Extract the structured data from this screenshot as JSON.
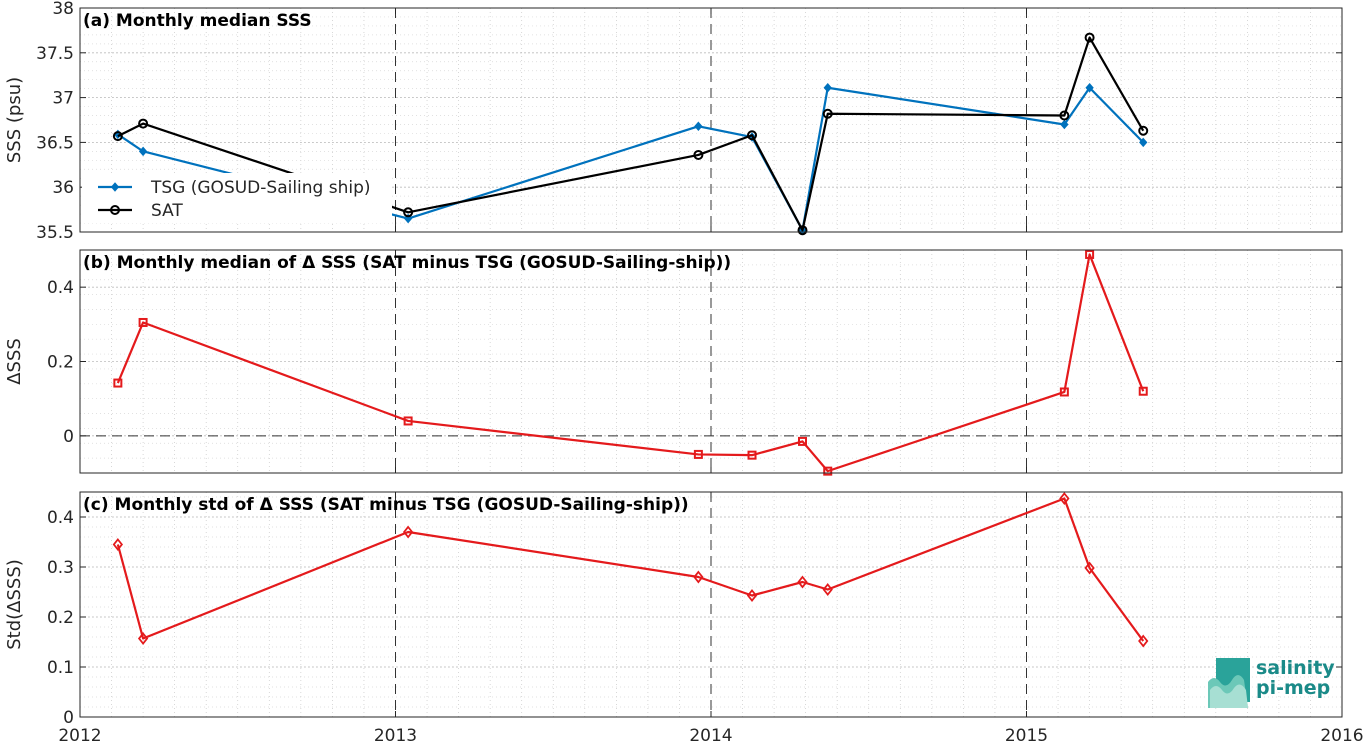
{
  "chart_data": [
    {
      "type": "line",
      "title": "(a) Monthly median SSS",
      "xlabel": "",
      "ylabel": "SSS (psu)",
      "xlim": [
        2012,
        2016
      ],
      "ylim": [
        35.5,
        38
      ],
      "yticks": [
        "35.5",
        "36",
        "36.5",
        "37",
        "37.5",
        "38"
      ],
      "grid": true,
      "legend_position": "middle-left",
      "series": [
        {
          "name": "TSG (GOSUD-Sailing ship)",
          "color": "#0072bd",
          "marker": "diamond-filled",
          "x": [
            2012.12,
            2012.2,
            2013.04,
            2013.96,
            2014.13,
            2014.29,
            2014.37,
            2015.12,
            2015.2,
            2015.37
          ],
          "y": [
            36.59,
            36.4,
            35.65,
            36.68,
            36.56,
            35.52,
            37.11,
            36.7,
            37.11,
            36.5
          ]
        },
        {
          "name": "SAT",
          "color": "#000000",
          "marker": "circle-open",
          "x": [
            2012.12,
            2012.2,
            2013.04,
            2013.96,
            2014.13,
            2014.29,
            2014.37,
            2015.12,
            2015.2,
            2015.37
          ],
          "y": [
            36.57,
            36.71,
            35.72,
            36.36,
            36.58,
            35.52,
            36.82,
            36.8,
            37.67,
            36.63
          ]
        }
      ]
    },
    {
      "type": "line",
      "title": "(b) Monthly median of Δ SSS (SAT minus TSG (GOSUD-Sailing-ship))",
      "xlabel": "",
      "ylabel": "ΔSSS",
      "xlim": [
        2012,
        2016
      ],
      "ylim": [
        -0.1,
        0.5
      ],
      "yticks": [
        "0",
        "0.2",
        "0.4"
      ],
      "zero_line": true,
      "grid": true,
      "series": [
        {
          "color": "#e41a1c",
          "marker": "square-open",
          "x": [
            2012.12,
            2012.2,
            2013.04,
            2013.96,
            2014.13,
            2014.29,
            2014.37,
            2015.12,
            2015.2,
            2015.37
          ],
          "y": [
            0.142,
            0.305,
            0.04,
            -0.05,
            -0.052,
            -0.015,
            -0.095,
            0.118,
            0.488,
            0.12
          ]
        }
      ]
    },
    {
      "type": "line",
      "title": "(c) Monthly std of Δ SSS (SAT minus TSG (GOSUD-Sailing-ship))",
      "xlabel": "",
      "ylabel": "Std(ΔSSS)",
      "xlim": [
        2012,
        2016
      ],
      "ylim": [
        0,
        0.45
      ],
      "xticks": [
        "2012",
        "2013",
        "2014",
        "2015",
        "2016"
      ],
      "yticks": [
        "0",
        "0.1",
        "0.2",
        "0.3",
        "0.4"
      ],
      "grid": true,
      "series": [
        {
          "color": "#e41a1c",
          "marker": "diamond-open",
          "x": [
            2012.12,
            2012.2,
            2013.04,
            2013.96,
            2014.13,
            2014.29,
            2014.37,
            2015.12,
            2015.2,
            2015.37
          ],
          "y": [
            0.345,
            0.157,
            0.37,
            0.28,
            0.243,
            0.27,
            0.255,
            0.437,
            0.298,
            0.152
          ]
        }
      ]
    }
  ],
  "logo": {
    "line1": "salinity",
    "line2": "pi-mep"
  }
}
